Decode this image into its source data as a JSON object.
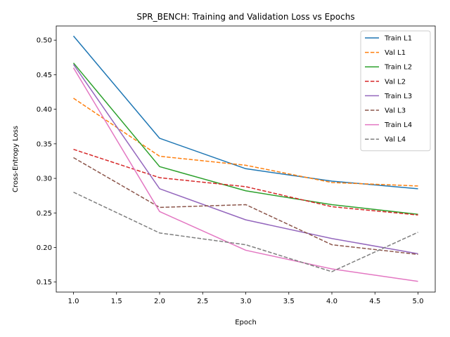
{
  "chart_data": {
    "type": "line",
    "title": "SPR_BENCH: Training and Validation Loss vs Epochs",
    "xlabel": "Epoch",
    "ylabel": "Cross-Entropy Loss",
    "xlim": [
      0.8,
      5.2
    ],
    "ylim": [
      0.1355,
      0.5205
    ],
    "xticks": [
      "1.0",
      "1.5",
      "2.0",
      "2.5",
      "3.0",
      "3.5",
      "4.0",
      "4.5",
      "5.0"
    ],
    "yticks": [
      "0.15",
      "0.20",
      "0.25",
      "0.30",
      "0.35",
      "0.40",
      "0.45",
      "0.50"
    ],
    "x": [
      1,
      2,
      3,
      4,
      5
    ],
    "grid": false,
    "legend_position": "top-right",
    "series": [
      {
        "name": "Train L1",
        "values": [
          0.506,
          0.358,
          0.314,
          0.296,
          0.285
        ],
        "color": "#1f77b4",
        "dash": "solid"
      },
      {
        "name": "Val L1",
        "values": [
          0.416,
          0.332,
          0.319,
          0.294,
          0.289
        ],
        "color": "#ff7f0e",
        "dash": "dashed"
      },
      {
        "name": "Train L2",
        "values": [
          0.467,
          0.317,
          0.282,
          0.262,
          0.248
        ],
        "color": "#2ca02c",
        "dash": "solid"
      },
      {
        "name": "Val L2",
        "values": [
          0.342,
          0.301,
          0.288,
          0.259,
          0.247
        ],
        "color": "#d62728",
        "dash": "dashed"
      },
      {
        "name": "Train L3",
        "values": [
          0.465,
          0.285,
          0.24,
          0.213,
          0.191
        ],
        "color": "#9467bd",
        "dash": "solid"
      },
      {
        "name": "Val L3",
        "values": [
          0.33,
          0.258,
          0.262,
          0.204,
          0.19
        ],
        "color": "#8c564b",
        "dash": "dashed"
      },
      {
        "name": "Train L4",
        "values": [
          0.46,
          0.252,
          0.196,
          0.169,
          0.151
        ],
        "color": "#e377c2",
        "dash": "solid"
      },
      {
        "name": "Val L4",
        "values": [
          0.28,
          0.221,
          0.204,
          0.165,
          0.222
        ],
        "color": "#7f7f7f",
        "dash": "dashed"
      }
    ]
  }
}
